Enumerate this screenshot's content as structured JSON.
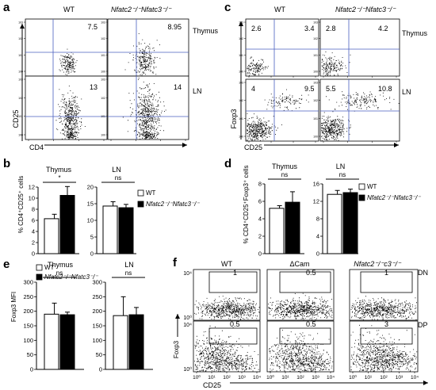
{
  "figure": {
    "panels": {
      "a": {
        "label": "a",
        "col_titles": [
          "WT",
          "Nfatc2⁻/⁻Nfatc3⁻/⁻"
        ],
        "row_labels": [
          "Thymus",
          "LN"
        ],
        "y_axis_label": "CD25",
        "x_axis_label": "CD4",
        "quadrant_values": [
          [
            "7.5",
            "8.95"
          ],
          [
            "13",
            "14"
          ]
        ]
      },
      "b": {
        "label": "b",
        "y_axis_label": "% CD4⁺CD25⁺ cells",
        "significance": [
          "*",
          "ns"
        ],
        "legend": [
          "WT",
          "Nfatc2⁻/⁻Nfatc3⁻/⁻"
        ]
      },
      "c": {
        "label": "c",
        "col_titles": [
          "WT",
          "Nfatc2⁻/⁻Nfatc3⁻/⁻"
        ],
        "row_labels": [
          "Thymus",
          "LN"
        ],
        "y_axis_label": "Foxp3",
        "x_axis_label": "CD25",
        "quadrant_values": [
          [
            "2.6",
            "3.4",
            "2.8",
            "4.2"
          ],
          [
            "4",
            "9.5",
            "5.5",
            "10.8"
          ]
        ]
      },
      "d": {
        "label": "d",
        "y_axis_label": "% CD4⁺CD25⁺Foxp3⁺ cells",
        "significance": [
          "ns",
          "ns"
        ],
        "legend": [
          "WT",
          "Nfatc2⁻/⁻Nfatc3⁻/⁻"
        ]
      },
      "e": {
        "label": "e",
        "y_axis_label": "Foxp3 MFI",
        "significance": [
          "ns",
          "ns"
        ],
        "legend": [
          "WT",
          "Nfatc2⁻/⁻Nfatc3⁻/⁻"
        ]
      },
      "f": {
        "label": "f",
        "col_titles": [
          "WT",
          "ΔCam",
          "Nfatc2⁻/⁻c3⁻/⁻"
        ],
        "row_labels": [
          "DN",
          "DP"
        ],
        "y_axis_label": "Foxp3",
        "x_axis_label": "CD25",
        "gate_values": [
          [
            "1",
            "0.5",
            "1"
          ],
          [
            "0.5",
            "0.5",
            "3"
          ]
        ],
        "log_tick_labels": [
          "10⁰",
          "10¹",
          "10²",
          "10³",
          "10⁴"
        ]
      }
    }
  },
  "chart_data": [
    {
      "id": "b",
      "type": "bar",
      "groups": [
        {
          "title": "Thymus",
          "yticks": [
            0,
            2,
            4,
            6,
            8,
            10,
            12
          ],
          "ylim": [
            0,
            12
          ],
          "series": [
            {
              "name": "WT",
              "value": 6.3,
              "error": 0.8
            },
            {
              "name": "Nfatc2⁻/⁻Nfatc3⁻/⁻",
              "value": 10.5,
              "error": 1.6
            }
          ],
          "significance": "*"
        },
        {
          "title": "LN",
          "yticks": [
            0,
            5,
            10,
            15,
            20
          ],
          "ylim": [
            0,
            20
          ],
          "series": [
            {
              "name": "WT",
              "value": 14.3,
              "error": 1.3
            },
            {
              "name": "Nfatc2⁻/⁻Nfatc3⁻/⁻",
              "value": 13.8,
              "error": 1.0
            }
          ],
          "significance": "ns"
        }
      ],
      "ylabel": "% CD4⁺CD25⁺ cells"
    },
    {
      "id": "d",
      "type": "bar",
      "groups": [
        {
          "title": "Thymus",
          "yticks": [
            0,
            2,
            4,
            6,
            8
          ],
          "ylim": [
            0,
            8
          ],
          "series": [
            {
              "name": "WT",
              "value": 5.2,
              "error": 0.3
            },
            {
              "name": "Nfatc2⁻/⁻Nfatc3⁻/⁻",
              "value": 5.9,
              "error": 1.2
            }
          ],
          "significance": "ns"
        },
        {
          "title": "LN",
          "yticks": [
            0,
            4,
            8,
            12,
            16
          ],
          "ylim": [
            0,
            16
          ],
          "series": [
            {
              "name": "WT",
              "value": 13.6,
              "error": 0.9
            },
            {
              "name": "Nfatc2⁻/⁻Nfatc3⁻/⁻",
              "value": 14.0,
              "error": 0.8
            }
          ],
          "significance": "ns"
        }
      ],
      "ylabel": "% CD4⁺CD25⁺Foxp3⁺ cells"
    },
    {
      "id": "e",
      "type": "bar",
      "groups": [
        {
          "title": "Thymus",
          "yticks": [
            0,
            50,
            100,
            150,
            200,
            250,
            300
          ],
          "ylim": [
            0,
            300
          ],
          "series": [
            {
              "name": "WT",
              "value": 190,
              "error": 38
            },
            {
              "name": "Nfatc2⁻/⁻Nfatc3⁻/⁻",
              "value": 188,
              "error": 9
            }
          ],
          "significance": "ns"
        },
        {
          "title": "LN",
          "yticks": [
            0,
            50,
            100,
            150,
            200,
            250,
            300
          ],
          "ylim": [
            0,
            300
          ],
          "series": [
            {
              "name": "WT",
              "value": 185,
              "error": 65
            },
            {
              "name": "Nfatc2⁻/⁻Nfatc3⁻/⁻",
              "value": 188,
              "error": 25
            }
          ],
          "significance": "ns"
        }
      ],
      "ylabel": "Foxp3 MFI"
    }
  ]
}
